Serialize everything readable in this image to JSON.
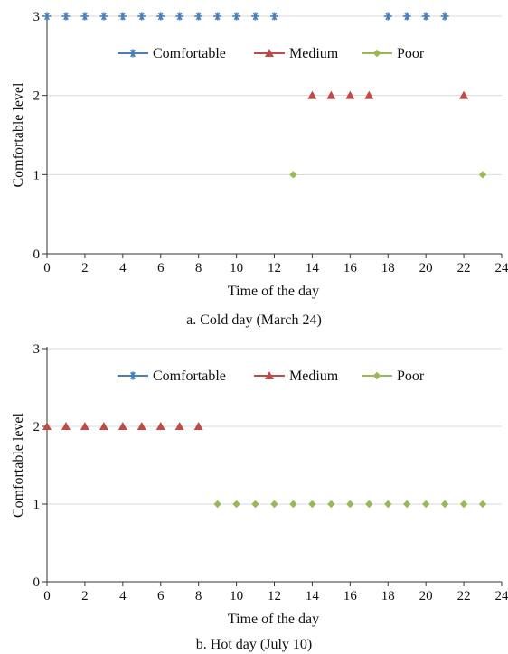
{
  "chart_data": [
    {
      "type": "scatter",
      "title": "",
      "caption": "a. Cold day (March 24)",
      "xlabel": "Time of the day",
      "ylabel": "Comfortable level",
      "xlim": [
        0,
        24
      ],
      "ylim": [
        0,
        3
      ],
      "xticks": [
        "0",
        "2",
        "4",
        "6",
        "8",
        "10",
        "12",
        "14",
        "16",
        "18",
        "20",
        "22",
        "24"
      ],
      "yticks": [
        "0",
        "1",
        "2",
        "3"
      ],
      "grid": "horizontal",
      "legend_position": "top-center",
      "series": [
        {
          "name": "Comfortable",
          "color": "#4a7ebb",
          "marker": "star",
          "points": [
            [
              0,
              3
            ],
            [
              1,
              3
            ],
            [
              2,
              3
            ],
            [
              3,
              3
            ],
            [
              4,
              3
            ],
            [
              5,
              3
            ],
            [
              6,
              3
            ],
            [
              7,
              3
            ],
            [
              8,
              3
            ],
            [
              9,
              3
            ],
            [
              10,
              3
            ],
            [
              11,
              3
            ],
            [
              12,
              3
            ],
            [
              18,
              3
            ],
            [
              19,
              3
            ],
            [
              20,
              3
            ],
            [
              21,
              3
            ]
          ]
        },
        {
          "name": "Medium",
          "color": "#be4b48",
          "marker": "triangle",
          "points": [
            [
              14,
              2
            ],
            [
              15,
              2
            ],
            [
              16,
              2
            ],
            [
              17,
              2
            ],
            [
              22,
              2
            ]
          ]
        },
        {
          "name": "Poor",
          "color": "#98b954",
          "marker": "diamond",
          "points": [
            [
              13,
              1
            ],
            [
              23,
              1
            ]
          ]
        }
      ]
    },
    {
      "type": "scatter",
      "title": "",
      "caption": "b. Hot day (July 10)",
      "xlabel": "Time of the day",
      "ylabel": "Comfortable level",
      "xlim": [
        0,
        24
      ],
      "ylim": [
        0,
        3
      ],
      "xticks": [
        "0",
        "2",
        "4",
        "6",
        "8",
        "10",
        "12",
        "14",
        "16",
        "18",
        "20",
        "22",
        "24"
      ],
      "yticks": [
        "0",
        "1",
        "2",
        "3"
      ],
      "grid": "horizontal",
      "legend_position": "top-center",
      "series": [
        {
          "name": "Comfortable",
          "color": "#4a7ebb",
          "marker": "star",
          "points": []
        },
        {
          "name": "Medium",
          "color": "#be4b48",
          "marker": "triangle",
          "points": [
            [
              0,
              2
            ],
            [
              1,
              2
            ],
            [
              2,
              2
            ],
            [
              3,
              2
            ],
            [
              4,
              2
            ],
            [
              5,
              2
            ],
            [
              6,
              2
            ],
            [
              7,
              2
            ],
            [
              8,
              2
            ]
          ]
        },
        {
          "name": "Poor",
          "color": "#98b954",
          "marker": "diamond",
          "points": [
            [
              9,
              1
            ],
            [
              10,
              1
            ],
            [
              11,
              1
            ],
            [
              12,
              1
            ],
            [
              13,
              1
            ],
            [
              14,
              1
            ],
            [
              15,
              1
            ],
            [
              16,
              1
            ],
            [
              17,
              1
            ],
            [
              18,
              1
            ],
            [
              19,
              1
            ],
            [
              20,
              1
            ],
            [
              21,
              1
            ],
            [
              22,
              1
            ],
            [
              23,
              1
            ]
          ]
        }
      ]
    }
  ]
}
